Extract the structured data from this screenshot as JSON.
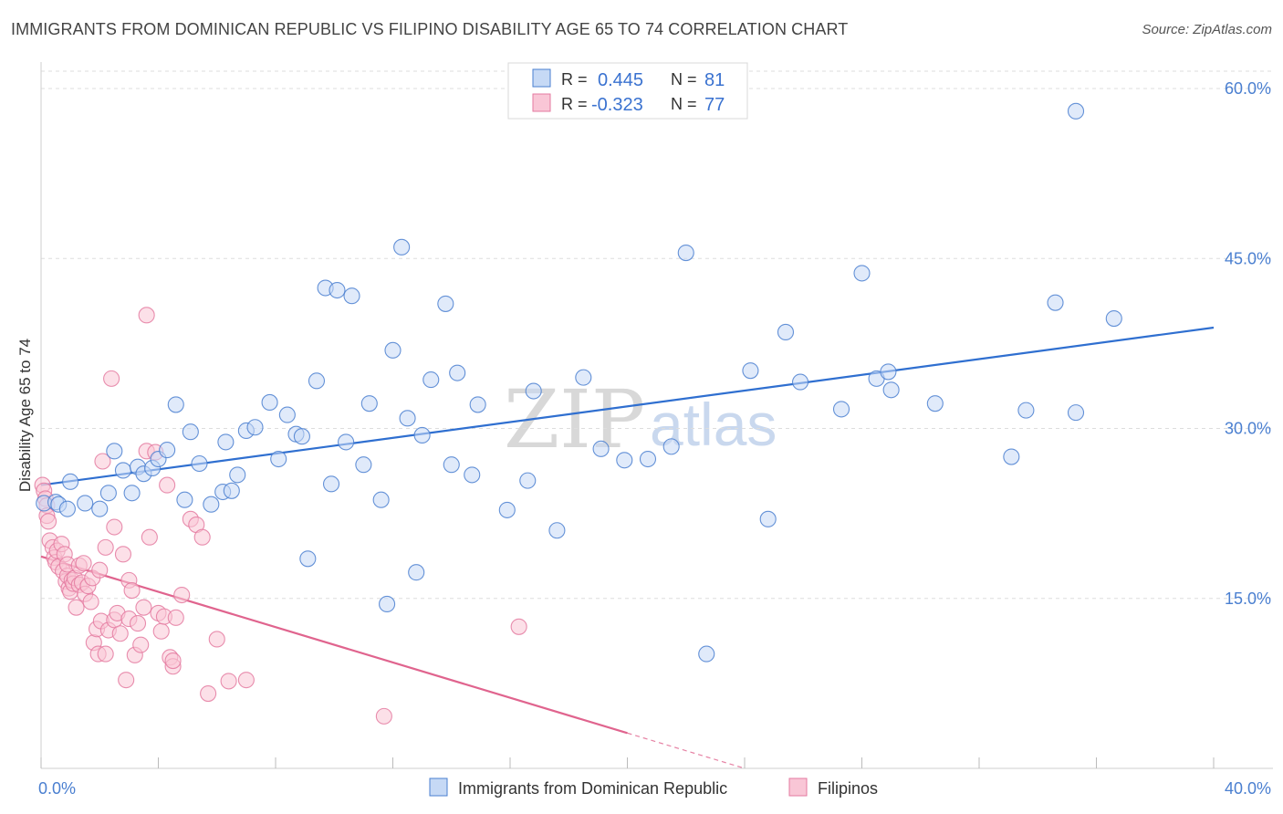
{
  "header": {
    "title": "IMMIGRANTS FROM DOMINICAN REPUBLIC VS FILIPINO DISABILITY AGE 65 TO 74 CORRELATION CHART",
    "source": "Source: ZipAtlas.com"
  },
  "watermark": {
    "zip": "ZIP",
    "atlas": "atlas"
  },
  "colors": {
    "blue": "#4a7fd0",
    "blue_fill": "#c6d9f5",
    "blue_line": "#2f6fd0",
    "pink": "#e47aa0",
    "pink_fill": "#f9c6d6",
    "pink_line": "#e0648e",
    "grid": "#dddddd"
  },
  "legend": {
    "rows": [
      {
        "r_label": "R =",
        "r_value": "0.445",
        "n_label": "N =",
        "n_value": "81"
      },
      {
        "r_label": "R =",
        "r_value": "-0.323",
        "n_label": "N =",
        "n_value": "77"
      }
    ]
  },
  "chart_data": {
    "type": "scatter",
    "title": "IMMIGRANTS FROM DOMINICAN REPUBLIC VS FILIPINO DISABILITY AGE 65 TO 74 CORRELATION CHART",
    "xlabel": "",
    "ylabel": "Disability Age 65 to 74",
    "xlim": [
      0,
      40
    ],
    "ylim": [
      0,
      60
    ],
    "x_tick_labels": [
      {
        "value": 0,
        "label": "0.0%"
      },
      {
        "value": 40,
        "label": "40.0%"
      }
    ],
    "y_tick_labels": [
      {
        "value": 15,
        "label": "15.0%"
      },
      {
        "value": 30,
        "label": "30.0%"
      },
      {
        "value": 45,
        "label": "45.0%"
      },
      {
        "value": 60,
        "label": "60.0%"
      }
    ],
    "grid": true,
    "legend_position": "top-center",
    "series": [
      {
        "name": "Immigrants from Dominican Republic",
        "color": "blue",
        "trend": {
          "x": [
            0,
            40
          ],
          "y": [
            25.0,
            38.9
          ]
        },
        "points": [
          [
            0.1,
            23.4
          ],
          [
            0.5,
            23.5
          ],
          [
            0.6,
            23.3
          ],
          [
            0.9,
            22.9
          ],
          [
            1.0,
            25.3
          ],
          [
            1.5,
            23.4
          ],
          [
            2.0,
            22.9
          ],
          [
            2.3,
            24.3
          ],
          [
            2.5,
            28.0
          ],
          [
            2.8,
            26.3
          ],
          [
            3.1,
            24.3
          ],
          [
            3.3,
            26.6
          ],
          [
            3.5,
            26.0
          ],
          [
            3.8,
            26.5
          ],
          [
            4.0,
            27.3
          ],
          [
            4.3,
            28.1
          ],
          [
            4.6,
            32.1
          ],
          [
            4.9,
            23.7
          ],
          [
            5.1,
            29.7
          ],
          [
            5.4,
            26.9
          ],
          [
            5.8,
            23.3
          ],
          [
            6.2,
            24.4
          ],
          [
            6.3,
            28.8
          ],
          [
            6.5,
            24.5
          ],
          [
            6.7,
            25.9
          ],
          [
            7.0,
            29.8
          ],
          [
            7.3,
            30.1
          ],
          [
            7.8,
            32.3
          ],
          [
            8.1,
            27.3
          ],
          [
            8.4,
            31.2
          ],
          [
            8.7,
            29.5
          ],
          [
            8.9,
            29.3
          ],
          [
            9.1,
            18.5
          ],
          [
            9.4,
            34.2
          ],
          [
            9.7,
            42.4
          ],
          [
            9.9,
            25.1
          ],
          [
            10.1,
            42.2
          ],
          [
            10.4,
            28.8
          ],
          [
            10.6,
            41.7
          ],
          [
            11.0,
            26.8
          ],
          [
            11.2,
            32.2
          ],
          [
            11.6,
            23.7
          ],
          [
            11.8,
            14.5
          ],
          [
            12.0,
            36.9
          ],
          [
            12.3,
            46.0
          ],
          [
            12.5,
            30.9
          ],
          [
            12.8,
            17.3
          ],
          [
            13.0,
            29.4
          ],
          [
            13.3,
            34.3
          ],
          [
            13.8,
            41.0
          ],
          [
            14.0,
            26.8
          ],
          [
            14.2,
            34.9
          ],
          [
            14.7,
            25.9
          ],
          [
            14.9,
            32.1
          ],
          [
            15.9,
            22.8
          ],
          [
            16.6,
            25.4
          ],
          [
            16.8,
            33.3
          ],
          [
            17.6,
            21.0
          ],
          [
            18.5,
            34.5
          ],
          [
            19.1,
            28.2
          ],
          [
            19.9,
            27.2
          ],
          [
            20.7,
            27.3
          ],
          [
            21.5,
            28.4
          ],
          [
            22.0,
            45.5
          ],
          [
            22.7,
            10.1
          ],
          [
            24.2,
            35.1
          ],
          [
            24.8,
            22.0
          ],
          [
            25.4,
            38.5
          ],
          [
            25.9,
            34.1
          ],
          [
            27.3,
            31.7
          ],
          [
            28.0,
            43.7
          ],
          [
            28.5,
            34.4
          ],
          [
            28.9,
            35.0
          ],
          [
            29.0,
            33.4
          ],
          [
            30.5,
            32.2
          ],
          [
            33.1,
            27.5
          ],
          [
            33.6,
            31.6
          ],
          [
            34.6,
            41.1
          ],
          [
            35.3,
            58.0
          ],
          [
            35.3,
            31.4
          ],
          [
            36.6,
            39.7
          ]
        ]
      },
      {
        "name": "Filipinos",
        "color": "pink",
        "trend": {
          "x": [
            0,
            24.0
          ],
          "y": [
            18.7,
            0.0
          ],
          "solid_until_x": 20.0
        },
        "points": [
          [
            0.05,
            25.0
          ],
          [
            0.1,
            24.5
          ],
          [
            0.15,
            23.8
          ],
          [
            0.2,
            23.2
          ],
          [
            0.2,
            22.3
          ],
          [
            0.25,
            21.8
          ],
          [
            0.3,
            20.1
          ],
          [
            0.4,
            19.5
          ],
          [
            0.45,
            18.6
          ],
          [
            0.5,
            18.2
          ],
          [
            0.55,
            19.2
          ],
          [
            0.6,
            17.8
          ],
          [
            0.7,
            19.8
          ],
          [
            0.75,
            17.4
          ],
          [
            0.8,
            18.9
          ],
          [
            0.85,
            16.5
          ],
          [
            0.9,
            17.0
          ],
          [
            0.9,
            18.0
          ],
          [
            0.95,
            15.9
          ],
          [
            1.0,
            15.6
          ],
          [
            1.05,
            16.6
          ],
          [
            1.1,
            16.3
          ],
          [
            1.15,
            16.8
          ],
          [
            1.2,
            14.2
          ],
          [
            1.3,
            17.9
          ],
          [
            1.3,
            16.2
          ],
          [
            1.4,
            16.4
          ],
          [
            1.45,
            18.1
          ],
          [
            1.5,
            15.4
          ],
          [
            1.6,
            16.1
          ],
          [
            1.7,
            14.7
          ],
          [
            1.75,
            16.8
          ],
          [
            1.8,
            11.1
          ],
          [
            1.9,
            12.3
          ],
          [
            1.95,
            10.1
          ],
          [
            2.0,
            17.5
          ],
          [
            2.05,
            13.0
          ],
          [
            2.1,
            27.1
          ],
          [
            2.2,
            19.5
          ],
          [
            2.2,
            10.1
          ],
          [
            2.3,
            12.2
          ],
          [
            2.4,
            34.4
          ],
          [
            2.5,
            13.1
          ],
          [
            2.5,
            21.3
          ],
          [
            2.6,
            13.7
          ],
          [
            2.7,
            11.9
          ],
          [
            2.8,
            18.9
          ],
          [
            2.9,
            7.8
          ],
          [
            3.0,
            13.2
          ],
          [
            3.0,
            16.6
          ],
          [
            3.1,
            15.7
          ],
          [
            3.2,
            10.0
          ],
          [
            3.3,
            12.8
          ],
          [
            3.4,
            10.9
          ],
          [
            3.5,
            14.2
          ],
          [
            3.6,
            28.0
          ],
          [
            3.6,
            40.0
          ],
          [
            3.7,
            20.4
          ],
          [
            3.9,
            27.9
          ],
          [
            4.0,
            13.7
          ],
          [
            4.1,
            12.1
          ],
          [
            4.2,
            13.4
          ],
          [
            4.3,
            25.0
          ],
          [
            4.4,
            9.8
          ],
          [
            4.5,
            9.0
          ],
          [
            4.5,
            9.5
          ],
          [
            4.6,
            13.3
          ],
          [
            4.8,
            15.3
          ],
          [
            5.1,
            22.0
          ],
          [
            5.3,
            21.5
          ],
          [
            5.5,
            20.4
          ],
          [
            5.7,
            6.6
          ],
          [
            6.0,
            11.4
          ],
          [
            6.4,
            7.7
          ],
          [
            7.0,
            7.8
          ],
          [
            11.7,
            4.6
          ],
          [
            16.3,
            12.5
          ]
        ]
      }
    ]
  },
  "bottom_legend": {
    "items": [
      {
        "label": "Immigrants from Dominican Republic"
      },
      {
        "label": "Filipinos"
      }
    ]
  }
}
